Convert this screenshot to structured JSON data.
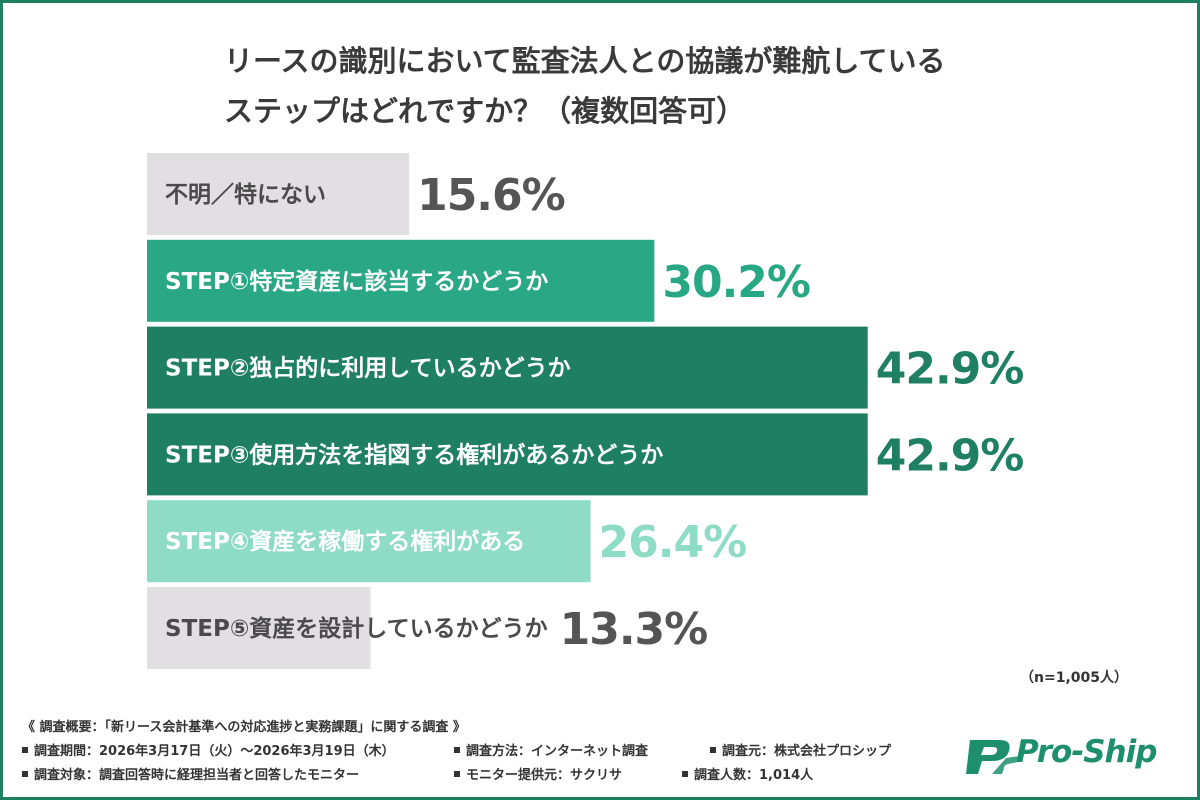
{
  "title": {
    "line1": "リースの識別において監査法人との協議が難航している",
    "line2": "ステップはどれですか？（複数回答可）"
  },
  "chart_data": {
    "type": "bar",
    "orientation": "horizontal",
    "categories": [
      "不明／特にない",
      "STEP①特定資産に該当するかどうか",
      "STEP②独占的に利用しているかどうか",
      "STEP③使用方法を指図する権利があるかどうか",
      "STEP④資産を稼働する権利がある",
      "STEP⑤資産を設計しているかどうか"
    ],
    "values": [
      15.6,
      30.2,
      42.9,
      42.9,
      26.4,
      13.3
    ],
    "value_labels": [
      "15.6%",
      "30.2%",
      "42.9%",
      "42.9%",
      "26.4%",
      "13.3%"
    ],
    "unit": "%",
    "xlim": [
      0,
      50
    ],
    "grid": false,
    "legend": "none",
    "colors": {
      "bars": [
        "#e1dfe2",
        "#2aa886",
        "#1e7f63",
        "#1e7f63",
        "#8fdcc6",
        "#e1dfe2"
      ],
      "bar_text": [
        "#4a4a4a",
        "#ffffff",
        "#ffffff",
        "#ffffff",
        "#ffffff",
        "#4a4a4a"
      ],
      "value_text": [
        "#555555",
        "#27a783",
        "#1e7f63",
        "#1e7f63",
        "#8fdcc6",
        "#555555"
      ]
    }
  },
  "n_note": "（n=1,005人）",
  "footer": {
    "overview": "《 調査概要：「新リース会計基準への対応進捗と実務課題」に関する調査 》",
    "period": "調査期間：2026年3月17日（火）～2026年3月19日（木）",
    "method": "調査方法：インターネット調査",
    "source": "調査元：株式会社プロシップ",
    "target": "調査対象：調査回答時に経理担当者と回答したモニター",
    "provider": "モニター提供元：サクリサ",
    "count": "調査人数：1,014人"
  },
  "logo": {
    "text": "Pro-Ship",
    "mark": "PS",
    "color": "#1e8f6c"
  }
}
